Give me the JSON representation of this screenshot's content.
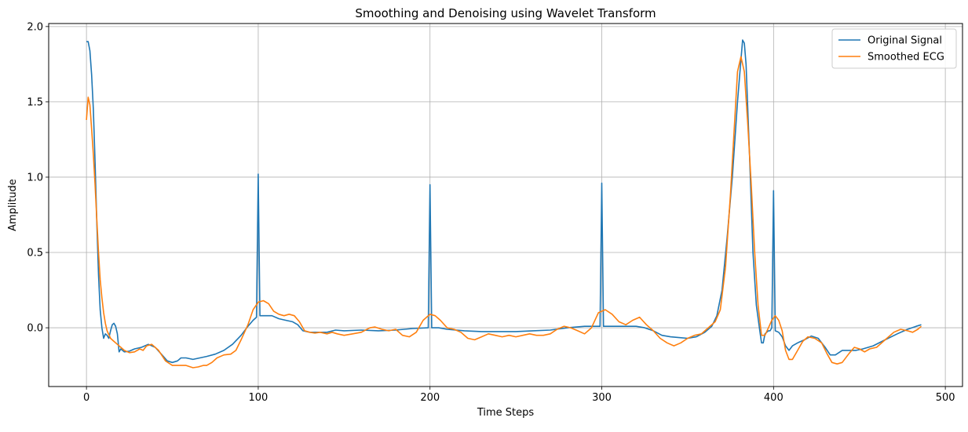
{
  "chart_data": {
    "type": "line",
    "title": "Smoothing and Denoising using Wavelet Transform",
    "xlabel": "Time Steps",
    "ylabel": "Amplitude",
    "xlim": [
      -22,
      510
    ],
    "ylim": [
      -0.39,
      2.02
    ],
    "xticks": [
      0,
      100,
      200,
      300,
      400,
      500
    ],
    "xtick_labels": [
      "0",
      "100",
      "200",
      "300",
      "400",
      "500"
    ],
    "yticks": [
      0.0,
      0.5,
      1.0,
      1.5,
      2.0
    ],
    "ytick_labels": [
      "0.0",
      "0.5",
      "1.0",
      "1.5",
      "2.0"
    ],
    "grid": true,
    "legend_position": "top-right",
    "series": [
      {
        "name": "Original Signal",
        "color": "#1f77b4",
        "points": [
          [
            0,
            1.9
          ],
          [
            1,
            1.9
          ],
          [
            2,
            1.84
          ],
          [
            3,
            1.68
          ],
          [
            4,
            1.45
          ],
          [
            5,
            1.1
          ],
          [
            6,
            0.7
          ],
          [
            7,
            0.35
          ],
          [
            8,
            0.12
          ],
          [
            9,
            0.0
          ],
          [
            10,
            -0.07
          ],
          [
            11,
            -0.04
          ],
          [
            12,
            -0.05
          ],
          [
            13,
            -0.07
          ],
          [
            14,
            -0.02
          ],
          [
            15,
            0.02
          ],
          [
            16,
            0.03
          ],
          [
            17,
            0.01
          ],
          [
            18,
            -0.04
          ],
          [
            19,
            -0.16
          ],
          [
            20,
            -0.14
          ],
          [
            22,
            -0.16
          ],
          [
            25,
            -0.155
          ],
          [
            28,
            -0.14
          ],
          [
            32,
            -0.13
          ],
          [
            36,
            -0.11
          ],
          [
            40,
            -0.13
          ],
          [
            44,
            -0.18
          ],
          [
            47,
            -0.22
          ],
          [
            50,
            -0.23
          ],
          [
            53,
            -0.22
          ],
          [
            55,
            -0.2
          ],
          [
            58,
            -0.2
          ],
          [
            62,
            -0.21
          ],
          [
            66,
            -0.2
          ],
          [
            70,
            -0.19
          ],
          [
            75,
            -0.175
          ],
          [
            80,
            -0.15
          ],
          [
            85,
            -0.11
          ],
          [
            90,
            -0.05
          ],
          [
            94,
            0.01
          ],
          [
            97,
            0.05
          ],
          [
            99,
            0.07
          ],
          [
            100,
            1.02
          ],
          [
            101,
            0.08
          ],
          [
            104,
            0.08
          ],
          [
            108,
            0.08
          ],
          [
            112,
            0.06
          ],
          [
            116,
            0.05
          ],
          [
            120,
            0.04
          ],
          [
            123,
            0.02
          ],
          [
            126,
            -0.02
          ],
          [
            130,
            -0.03
          ],
          [
            135,
            -0.03
          ],
          [
            140,
            -0.03
          ],
          [
            145,
            -0.015
          ],
          [
            150,
            -0.02
          ],
          [
            160,
            -0.015
          ],
          [
            170,
            -0.02
          ],
          [
            180,
            -0.015
          ],
          [
            190,
            -0.005
          ],
          [
            199,
            0.0
          ],
          [
            200,
            0.95
          ],
          [
            201,
            0.0
          ],
          [
            205,
            0.0
          ],
          [
            210,
            -0.01
          ],
          [
            220,
            -0.02
          ],
          [
            230,
            -0.025
          ],
          [
            240,
            -0.025
          ],
          [
            250,
            -0.025
          ],
          [
            260,
            -0.02
          ],
          [
            270,
            -0.015
          ],
          [
            280,
            0.0
          ],
          [
            290,
            0.01
          ],
          [
            299,
            0.01
          ],
          [
            300,
            0.96
          ],
          [
            301,
            0.01
          ],
          [
            305,
            0.01
          ],
          [
            310,
            0.01
          ],
          [
            320,
            0.01
          ],
          [
            325,
            0.0
          ],
          [
            330,
            -0.02
          ],
          [
            335,
            -0.05
          ],
          [
            340,
            -0.06
          ],
          [
            345,
            -0.065
          ],
          [
            350,
            -0.07
          ],
          [
            355,
            -0.06
          ],
          [
            360,
            -0.03
          ],
          [
            364,
            0.01
          ],
          [
            367,
            0.08
          ],
          [
            370,
            0.25
          ],
          [
            373,
            0.6
          ],
          [
            376,
            1.0
          ],
          [
            379,
            1.5
          ],
          [
            381,
            1.78
          ],
          [
            382,
            1.91
          ],
          [
            383,
            1.89
          ],
          [
            384,
            1.75
          ],
          [
            386,
            1.15
          ],
          [
            388,
            0.5
          ],
          [
            390,
            0.15
          ],
          [
            392,
            -0.02
          ],
          [
            393,
            -0.1
          ],
          [
            394,
            -0.1
          ],
          [
            395,
            -0.04
          ],
          [
            397,
            -0.02
          ],
          [
            398,
            -0.02
          ],
          [
            399,
            0.0
          ],
          [
            400,
            0.91
          ],
          [
            401,
            -0.02
          ],
          [
            403,
            -0.03
          ],
          [
            405,
            -0.06
          ],
          [
            407,
            -0.12
          ],
          [
            409,
            -0.15
          ],
          [
            411,
            -0.12
          ],
          [
            414,
            -0.1
          ],
          [
            418,
            -0.08
          ],
          [
            422,
            -0.055
          ],
          [
            426,
            -0.07
          ],
          [
            430,
            -0.13
          ],
          [
            433,
            -0.18
          ],
          [
            436,
            -0.18
          ],
          [
            440,
            -0.15
          ],
          [
            444,
            -0.15
          ],
          [
            448,
            -0.15
          ],
          [
            452,
            -0.14
          ],
          [
            458,
            -0.12
          ],
          [
            465,
            -0.08
          ],
          [
            472,
            -0.04
          ],
          [
            478,
            -0.01
          ],
          [
            483,
            0.01
          ],
          [
            486,
            0.02
          ]
        ]
      },
      {
        "name": "Smoothed ECG",
        "color": "#ff7f0e",
        "points": [
          [
            0,
            1.38
          ],
          [
            1,
            1.53
          ],
          [
            2,
            1.48
          ],
          [
            3,
            1.32
          ],
          [
            4,
            1.15
          ],
          [
            5,
            0.95
          ],
          [
            6,
            0.72
          ],
          [
            7,
            0.5
          ],
          [
            8,
            0.32
          ],
          [
            9,
            0.2
          ],
          [
            10,
            0.1
          ],
          [
            11,
            0.03
          ],
          [
            12,
            -0.02
          ],
          [
            14,
            -0.07
          ],
          [
            16,
            -0.09
          ],
          [
            18,
            -0.11
          ],
          [
            20,
            -0.13
          ],
          [
            22,
            -0.15
          ],
          [
            25,
            -0.165
          ],
          [
            28,
            -0.16
          ],
          [
            31,
            -0.14
          ],
          [
            33,
            -0.15
          ],
          [
            35,
            -0.12
          ],
          [
            38,
            -0.11
          ],
          [
            42,
            -0.15
          ],
          [
            46,
            -0.22
          ],
          [
            50,
            -0.25
          ],
          [
            54,
            -0.25
          ],
          [
            58,
            -0.25
          ],
          [
            62,
            -0.265
          ],
          [
            65,
            -0.26
          ],
          [
            68,
            -0.25
          ],
          [
            70,
            -0.25
          ],
          [
            73,
            -0.23
          ],
          [
            76,
            -0.2
          ],
          [
            80,
            -0.18
          ],
          [
            84,
            -0.175
          ],
          [
            87,
            -0.15
          ],
          [
            90,
            -0.08
          ],
          [
            94,
            0.02
          ],
          [
            97,
            0.12
          ],
          [
            100,
            0.17
          ],
          [
            103,
            0.18
          ],
          [
            106,
            0.16
          ],
          [
            109,
            0.11
          ],
          [
            112,
            0.09
          ],
          [
            115,
            0.08
          ],
          [
            118,
            0.09
          ],
          [
            121,
            0.08
          ],
          [
            124,
            0.04
          ],
          [
            127,
            -0.02
          ],
          [
            130,
            -0.03
          ],
          [
            133,
            -0.035
          ],
          [
            136,
            -0.03
          ],
          [
            140,
            -0.04
          ],
          [
            143,
            -0.03
          ],
          [
            146,
            -0.04
          ],
          [
            150,
            -0.05
          ],
          [
            155,
            -0.04
          ],
          [
            160,
            -0.03
          ],
          [
            165,
            0.0
          ],
          [
            168,
            0.005
          ],
          [
            172,
            -0.01
          ],
          [
            176,
            -0.02
          ],
          [
            180,
            -0.01
          ],
          [
            184,
            -0.05
          ],
          [
            188,
            -0.06
          ],
          [
            192,
            -0.03
          ],
          [
            196,
            0.05
          ],
          [
            200,
            0.09
          ],
          [
            203,
            0.08
          ],
          [
            206,
            0.05
          ],
          [
            210,
            0.0
          ],
          [
            214,
            -0.01
          ],
          [
            218,
            -0.03
          ],
          [
            222,
            -0.07
          ],
          [
            226,
            -0.08
          ],
          [
            230,
            -0.06
          ],
          [
            234,
            -0.04
          ],
          [
            238,
            -0.05
          ],
          [
            242,
            -0.06
          ],
          [
            246,
            -0.05
          ],
          [
            250,
            -0.06
          ],
          [
            254,
            -0.05
          ],
          [
            258,
            -0.04
          ],
          [
            262,
            -0.05
          ],
          [
            266,
            -0.05
          ],
          [
            270,
            -0.04
          ],
          [
            274,
            -0.01
          ],
          [
            278,
            0.01
          ],
          [
            282,
            0.0
          ],
          [
            286,
            -0.02
          ],
          [
            290,
            -0.04
          ],
          [
            294,
            0.0
          ],
          [
            298,
            0.1
          ],
          [
            302,
            0.12
          ],
          [
            306,
            0.09
          ],
          [
            310,
            0.04
          ],
          [
            314,
            0.02
          ],
          [
            318,
            0.05
          ],
          [
            322,
            0.07
          ],
          [
            326,
            0.02
          ],
          [
            330,
            -0.02
          ],
          [
            334,
            -0.07
          ],
          [
            338,
            -0.1
          ],
          [
            342,
            -0.12
          ],
          [
            346,
            -0.1
          ],
          [
            350,
            -0.07
          ],
          [
            354,
            -0.05
          ],
          [
            358,
            -0.04
          ],
          [
            362,
            0.0
          ],
          [
            366,
            0.04
          ],
          [
            369,
            0.12
          ],
          [
            372,
            0.4
          ],
          [
            375,
            0.9
          ],
          [
            377,
            1.3
          ],
          [
            379,
            1.7
          ],
          [
            381,
            1.8
          ],
          [
            383,
            1.7
          ],
          [
            385,
            1.35
          ],
          [
            387,
            0.95
          ],
          [
            389,
            0.5
          ],
          [
            391,
            0.15
          ],
          [
            393,
            -0.05
          ],
          [
            395,
            -0.05
          ],
          [
            397,
            0.0
          ],
          [
            399,
            0.05
          ],
          [
            401,
            0.08
          ],
          [
            403,
            0.05
          ],
          [
            405,
            -0.02
          ],
          [
            407,
            -0.15
          ],
          [
            409,
            -0.21
          ],
          [
            411,
            -0.21
          ],
          [
            414,
            -0.15
          ],
          [
            417,
            -0.09
          ],
          [
            420,
            -0.06
          ],
          [
            424,
            -0.07
          ],
          [
            428,
            -0.1
          ],
          [
            431,
            -0.17
          ],
          [
            434,
            -0.23
          ],
          [
            437,
            -0.24
          ],
          [
            440,
            -0.23
          ],
          [
            444,
            -0.17
          ],
          [
            447,
            -0.13
          ],
          [
            450,
            -0.14
          ],
          [
            453,
            -0.16
          ],
          [
            456,
            -0.14
          ],
          [
            460,
            -0.13
          ],
          [
            465,
            -0.08
          ],
          [
            470,
            -0.03
          ],
          [
            474,
            -0.01
          ],
          [
            478,
            -0.02
          ],
          [
            481,
            -0.03
          ],
          [
            484,
            -0.01
          ],
          [
            486,
            0.01
          ]
        ]
      }
    ]
  }
}
